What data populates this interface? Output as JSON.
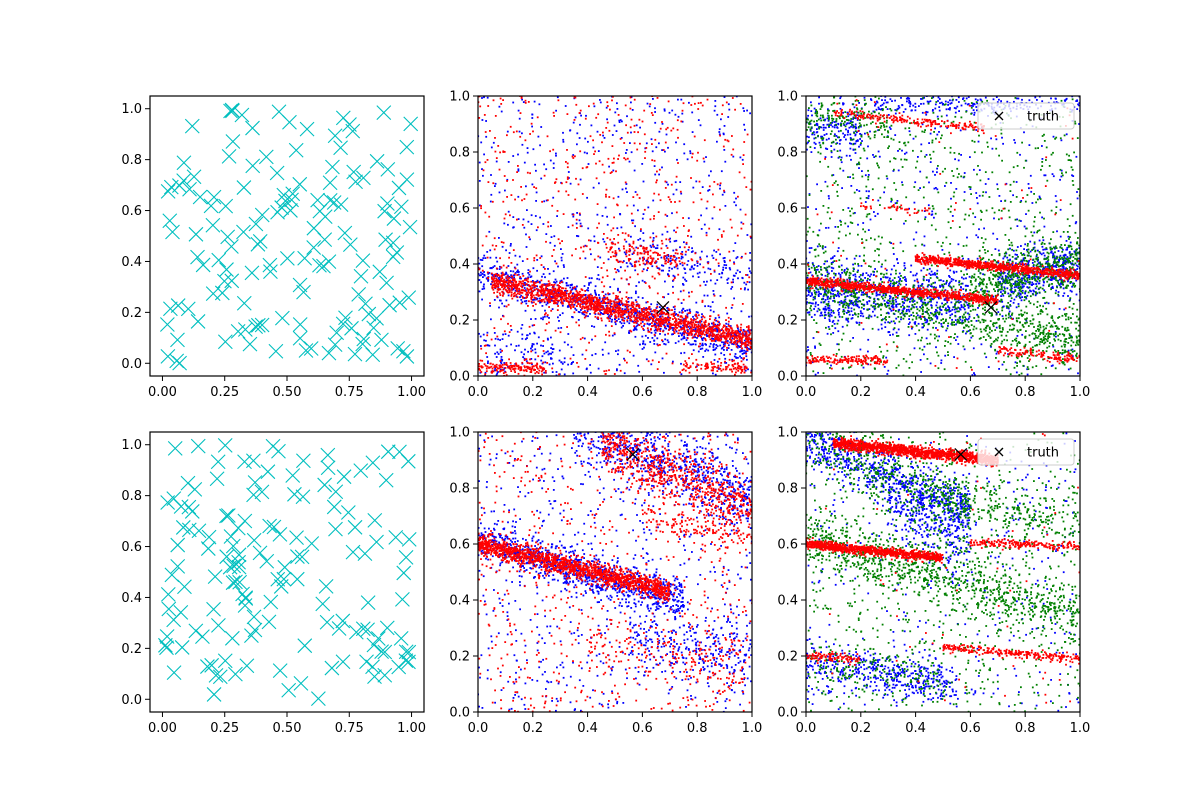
{
  "figure": {
    "rows": 2,
    "cols": 3
  },
  "chart_data": [
    {
      "type": "scatter",
      "row": 0,
      "col": 0,
      "xlim": [
        -0.05,
        1.05
      ],
      "ylim": [
        -0.05,
        1.05
      ],
      "xticks": [
        "0.00",
        "0.25",
        "0.50",
        "0.75",
        "1.00"
      ],
      "yticks": [
        "0.0",
        "0.2",
        "0.4",
        "0.6",
        "0.8",
        "1.0"
      ],
      "xtick_values": [
        0,
        0.25,
        0.5,
        0.75,
        1.0
      ],
      "ytick_values": [
        0,
        0.2,
        0.4,
        0.6,
        0.8,
        1.0
      ],
      "series": [
        {
          "color": "#00bfbf",
          "marker": "x",
          "count": 150,
          "seed": 11,
          "distribution": "uniform random points over [0,1] x [0,1]"
        }
      ],
      "grid": false
    },
    {
      "type": "scatter",
      "row": 0,
      "col": 1,
      "xlim": [
        0,
        1
      ],
      "ylim": [
        0,
        1
      ],
      "xticks": [
        "0.0",
        "0.2",
        "0.4",
        "0.6",
        "0.8",
        "1.0"
      ],
      "yticks": [
        "0.0",
        "0.2",
        "0.4",
        "0.6",
        "0.8",
        "1.0"
      ],
      "xtick_values": [
        0,
        0.2,
        0.4,
        0.6,
        0.8,
        1.0
      ],
      "ytick_values": [
        0,
        0.2,
        0.4,
        0.6,
        0.8,
        1.0
      ],
      "series": [
        {
          "color": "#0000ff",
          "marker": ".",
          "seed": 21,
          "bands": [
            {
              "intercept": 0.37,
              "slope": -0.26,
              "spread": 0.035,
              "count": 900,
              "xrange": [
                0,
                1
              ]
            },
            {
              "intercept": 0.52,
              "slope": -0.16,
              "spread": 0.035,
              "count": 150,
              "xrange": [
                0.5,
                1
              ]
            },
            {
              "intercept": 0.1,
              "slope": -0.05,
              "spread": 0.06,
              "count": 120,
              "xrange": [
                0,
                0.35
              ]
            }
          ],
          "background": 650
        },
        {
          "color": "#ff0000",
          "marker": ".",
          "seed": 22,
          "bands": [
            {
              "intercept": 0.35,
              "slope": -0.22,
              "spread": 0.02,
              "count": 1500,
              "xrange": [
                0.05,
                1
              ]
            },
            {
              "intercept": 0.53,
              "slope": -0.16,
              "spread": 0.025,
              "count": 150,
              "xrange": [
                0.45,
                0.75
              ]
            },
            {
              "intercept": 0.03,
              "slope": -0.02,
              "spread": 0.012,
              "count": 150,
              "xrange": [
                0,
                0.25
              ]
            },
            {
              "intercept": 0.05,
              "slope": -0.02,
              "spread": 0.012,
              "count": 90,
              "xrange": [
                0.75,
                1
              ]
            }
          ],
          "background": 650
        }
      ],
      "truth": {
        "x": 0.675,
        "y": 0.245
      },
      "grid": false
    },
    {
      "type": "scatter",
      "row": 0,
      "col": 2,
      "xlim": [
        0,
        1
      ],
      "ylim": [
        0,
        1
      ],
      "xticks": [
        "0.0",
        "0.2",
        "0.4",
        "0.6",
        "0.8",
        "1.0"
      ],
      "yticks": [
        "0.0",
        "0.2",
        "0.4",
        "0.6",
        "0.8",
        "1.0"
      ],
      "xtick_values": [
        0,
        0.2,
        0.4,
        0.6,
        0.8,
        1.0
      ],
      "ytick_values": [
        0,
        0.2,
        0.4,
        0.6,
        0.8,
        1.0
      ],
      "series": [
        {
          "color": "#0000ff",
          "marker": ".",
          "seed": 31,
          "bands": [
            {
              "intercept": 0.3,
              "slope": -0.05,
              "spread": 0.06,
              "count": 700,
              "xrange": [
                0,
                0.6
              ]
            },
            {
              "intercept": 0.2,
              "slope": 0.2,
              "spread": 0.05,
              "count": 450,
              "xrange": [
                0.7,
                1
              ]
            },
            {
              "intercept": 0.97,
              "slope": 0.0,
              "spread": 0.02,
              "count": 220,
              "xrange": [
                0.25,
                1
              ]
            },
            {
              "intercept": 0.88,
              "slope": -0.05,
              "spread": 0.04,
              "count": 150,
              "xrange": [
                0,
                0.2
              ]
            }
          ],
          "background": 500
        },
        {
          "color": "#008000",
          "marker": ".",
          "seed": 32,
          "bands": [
            {
              "intercept": 0.34,
              "slope": -0.22,
              "spread": 0.05,
              "count": 800,
              "xrange": [
                0,
                1
              ]
            },
            {
              "intercept": 0.22,
              "slope": 0.18,
              "spread": 0.05,
              "count": 500,
              "xrange": [
                0.6,
                1
              ]
            },
            {
              "intercept": 0.92,
              "slope": -0.05,
              "spread": 0.04,
              "count": 150,
              "xrange": [
                0,
                0.3
              ]
            }
          ],
          "background": 800
        },
        {
          "color": "#ff0000",
          "marker": ".",
          "seed": 33,
          "bands": [
            {
              "intercept": 0.34,
              "slope": -0.1,
              "spread": 0.008,
              "count": 900,
              "xrange": [
                0,
                0.7
              ]
            },
            {
              "intercept": 0.46,
              "slope": -0.1,
              "spread": 0.008,
              "count": 800,
              "xrange": [
                0.4,
                1
              ]
            },
            {
              "intercept": 0.06,
              "slope": -0.02,
              "spread": 0.008,
              "count": 150,
              "xrange": [
                0,
                0.3
              ]
            },
            {
              "intercept": 0.16,
              "slope": -0.1,
              "spread": 0.01,
              "count": 130,
              "xrange": [
                0.7,
                1
              ]
            },
            {
              "intercept": 0.95,
              "slope": -0.1,
              "spread": 0.008,
              "count": 200,
              "xrange": [
                0.1,
                0.65
              ]
            },
            {
              "intercept": 0.62,
              "slope": -0.07,
              "spread": 0.008,
              "count": 40,
              "xrange": [
                0.2,
                0.45
              ]
            }
          ],
          "background": 80
        }
      ],
      "truth": {
        "x": 0.675,
        "y": 0.245
      },
      "legend": {
        "label": "truth",
        "position": "top-right"
      },
      "grid": false
    },
    {
      "type": "scatter",
      "row": 1,
      "col": 0,
      "xlim": [
        -0.05,
        1.05
      ],
      "ylim": [
        -0.05,
        1.05
      ],
      "xticks": [
        "0.00",
        "0.25",
        "0.50",
        "0.75",
        "1.00"
      ],
      "yticks": [
        "0.0",
        "0.2",
        "0.4",
        "0.6",
        "0.8",
        "1.0"
      ],
      "xtick_values": [
        0,
        0.25,
        0.5,
        0.75,
        1.0
      ],
      "ytick_values": [
        0,
        0.2,
        0.4,
        0.6,
        0.8,
        1.0
      ],
      "series": [
        {
          "color": "#00bfbf",
          "marker": "x",
          "count": 150,
          "seed": 41,
          "distribution": "uniform random points over [0,1] x [0,1]"
        }
      ],
      "grid": false
    },
    {
      "type": "scatter",
      "row": 1,
      "col": 1,
      "xlim": [
        0,
        1
      ],
      "ylim": [
        0,
        1
      ],
      "xticks": [
        "0.0",
        "0.2",
        "0.4",
        "0.6",
        "0.8",
        "1.0"
      ],
      "yticks": [
        "0.0",
        "0.2",
        "0.4",
        "0.6",
        "0.8",
        "1.0"
      ],
      "xtick_values": [
        0,
        0.2,
        0.4,
        0.6,
        0.8,
        1.0
      ],
      "ytick_values": [
        0,
        0.2,
        0.4,
        0.6,
        0.8,
        1.0
      ],
      "series": [
        {
          "color": "#0000ff",
          "marker": ".",
          "seed": 51,
          "bands": [
            {
              "intercept": 0.61,
              "slope": -0.28,
              "spread": 0.035,
              "count": 900,
              "xrange": [
                0,
                0.75
              ]
            },
            {
              "intercept": 1.2,
              "slope": -0.45,
              "spread": 0.06,
              "count": 700,
              "xrange": [
                0.35,
                1
              ]
            },
            {
              "intercept": 0.35,
              "slope": -0.15,
              "spread": 0.06,
              "count": 250,
              "xrange": [
                0.55,
                1
              ]
            }
          ],
          "background": 650
        },
        {
          "color": "#ff0000",
          "marker": ".",
          "seed": 52,
          "bands": [
            {
              "intercept": 0.6,
              "slope": -0.24,
              "spread": 0.018,
              "count": 1500,
              "xrange": [
                0,
                0.7
              ]
            },
            {
              "intercept": 1.15,
              "slope": -0.42,
              "spread": 0.05,
              "count": 700,
              "xrange": [
                0.45,
                1
              ]
            },
            {
              "intercept": 0.82,
              "slope": -0.2,
              "spread": 0.03,
              "count": 150,
              "xrange": [
                0.6,
                1
              ]
            },
            {
              "intercept": 0.3,
              "slope": -0.15,
              "spread": 0.05,
              "count": 150,
              "xrange": [
                0.4,
                1
              ]
            }
          ],
          "background": 650
        }
      ],
      "truth": {
        "x": 0.565,
        "y": 0.92
      },
      "grid": false
    },
    {
      "type": "scatter",
      "row": 1,
      "col": 2,
      "xlim": [
        0,
        1
      ],
      "ylim": [
        0,
        1
      ],
      "xticks": [
        "0.0",
        "0.2",
        "0.4",
        "0.6",
        "0.8",
        "1.0"
      ],
      "yticks": [
        "0.0",
        "0.2",
        "0.4",
        "0.6",
        "0.8",
        "1.0"
      ],
      "xtick_values": [
        0,
        0.2,
        0.4,
        0.6,
        0.8,
        1.0
      ],
      "ytick_values": [
        0,
        0.2,
        0.4,
        0.6,
        0.8,
        1.0
      ],
      "series": [
        {
          "color": "#0000ff",
          "marker": ".",
          "seed": 61,
          "bands": [
            {
              "intercept": 0.98,
              "slope": -0.45,
              "spread": 0.05,
              "count": 700,
              "xrange": [
                0,
                0.6
              ]
            },
            {
              "intercept": 0.18,
              "slope": -0.15,
              "spread": 0.04,
              "count": 400,
              "xrange": [
                0,
                0.55
              ]
            },
            {
              "intercept": 0.9,
              "slope": -0.5,
              "spread": 0.08,
              "count": 250,
              "xrange": [
                0.3,
                0.6
              ]
            }
          ],
          "background": 350
        },
        {
          "color": "#008000",
          "marker": ".",
          "seed": 62,
          "bands": [
            {
              "intercept": 0.98,
              "slope": -0.45,
              "spread": 0.06,
              "count": 400,
              "xrange": [
                0,
                0.6
              ]
            },
            {
              "intercept": 0.62,
              "slope": -0.28,
              "spread": 0.05,
              "count": 900,
              "xrange": [
                0,
                1
              ]
            },
            {
              "intercept": 0.9,
              "slope": -0.25,
              "spread": 0.04,
              "count": 250,
              "xrange": [
                0.45,
                1
              ]
            },
            {
              "intercept": 0.18,
              "slope": -0.1,
              "spread": 0.04,
              "count": 150,
              "xrange": [
                0,
                0.5
              ]
            }
          ],
          "background": 700
        },
        {
          "color": "#ff0000",
          "marker": ".",
          "seed": 63,
          "bands": [
            {
              "intercept": 0.97,
              "slope": -0.1,
              "spread": 0.01,
              "count": 1400,
              "xrange": [
                0.1,
                0.7
              ]
            },
            {
              "intercept": 0.6,
              "slope": -0.1,
              "spread": 0.008,
              "count": 900,
              "xrange": [
                0,
                0.5
              ]
            },
            {
              "intercept": 0.63,
              "slope": -0.04,
              "spread": 0.008,
              "count": 200,
              "xrange": [
                0.6,
                1
              ]
            },
            {
              "intercept": 0.27,
              "slope": -0.08,
              "spread": 0.008,
              "count": 250,
              "xrange": [
                0.5,
                1
              ]
            },
            {
              "intercept": 0.2,
              "slope": -0.05,
              "spread": 0.008,
              "count": 100,
              "xrange": [
                0,
                0.2
              ]
            }
          ],
          "background": 60
        }
      ],
      "truth": {
        "x": 0.565,
        "y": 0.92
      },
      "legend": {
        "label": "truth",
        "position": "top-right"
      },
      "grid": false
    }
  ]
}
